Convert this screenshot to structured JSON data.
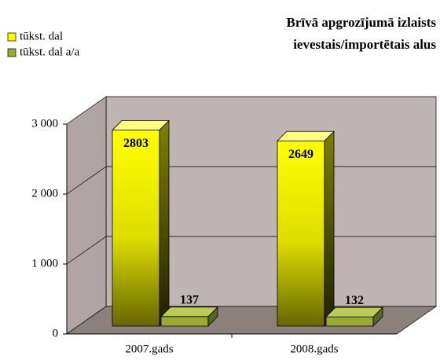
{
  "chart_data": {
    "type": "bar3d",
    "title": [
      "Brīvā apgrozījumā izlaists",
      "ievestais/importētais alus"
    ],
    "categories": [
      "2007.gads",
      "2008.gads"
    ],
    "series": [
      {
        "name": "tūkst. dal",
        "color": "#ffff00",
        "values": [
          2803,
          2649
        ]
      },
      {
        "name": "tūkst. dal a/a",
        "color": "#99aa33",
        "values": [
          137,
          132
        ]
      }
    ],
    "ylim": [
      0,
      3000
    ],
    "yticks": [
      0,
      {
        "value": 1000,
        "label": "1 000"
      },
      {
        "value": 2000,
        "label": "2 000"
      },
      {
        "value": 3000,
        "label": "3 000"
      }
    ],
    "grid": true
  }
}
